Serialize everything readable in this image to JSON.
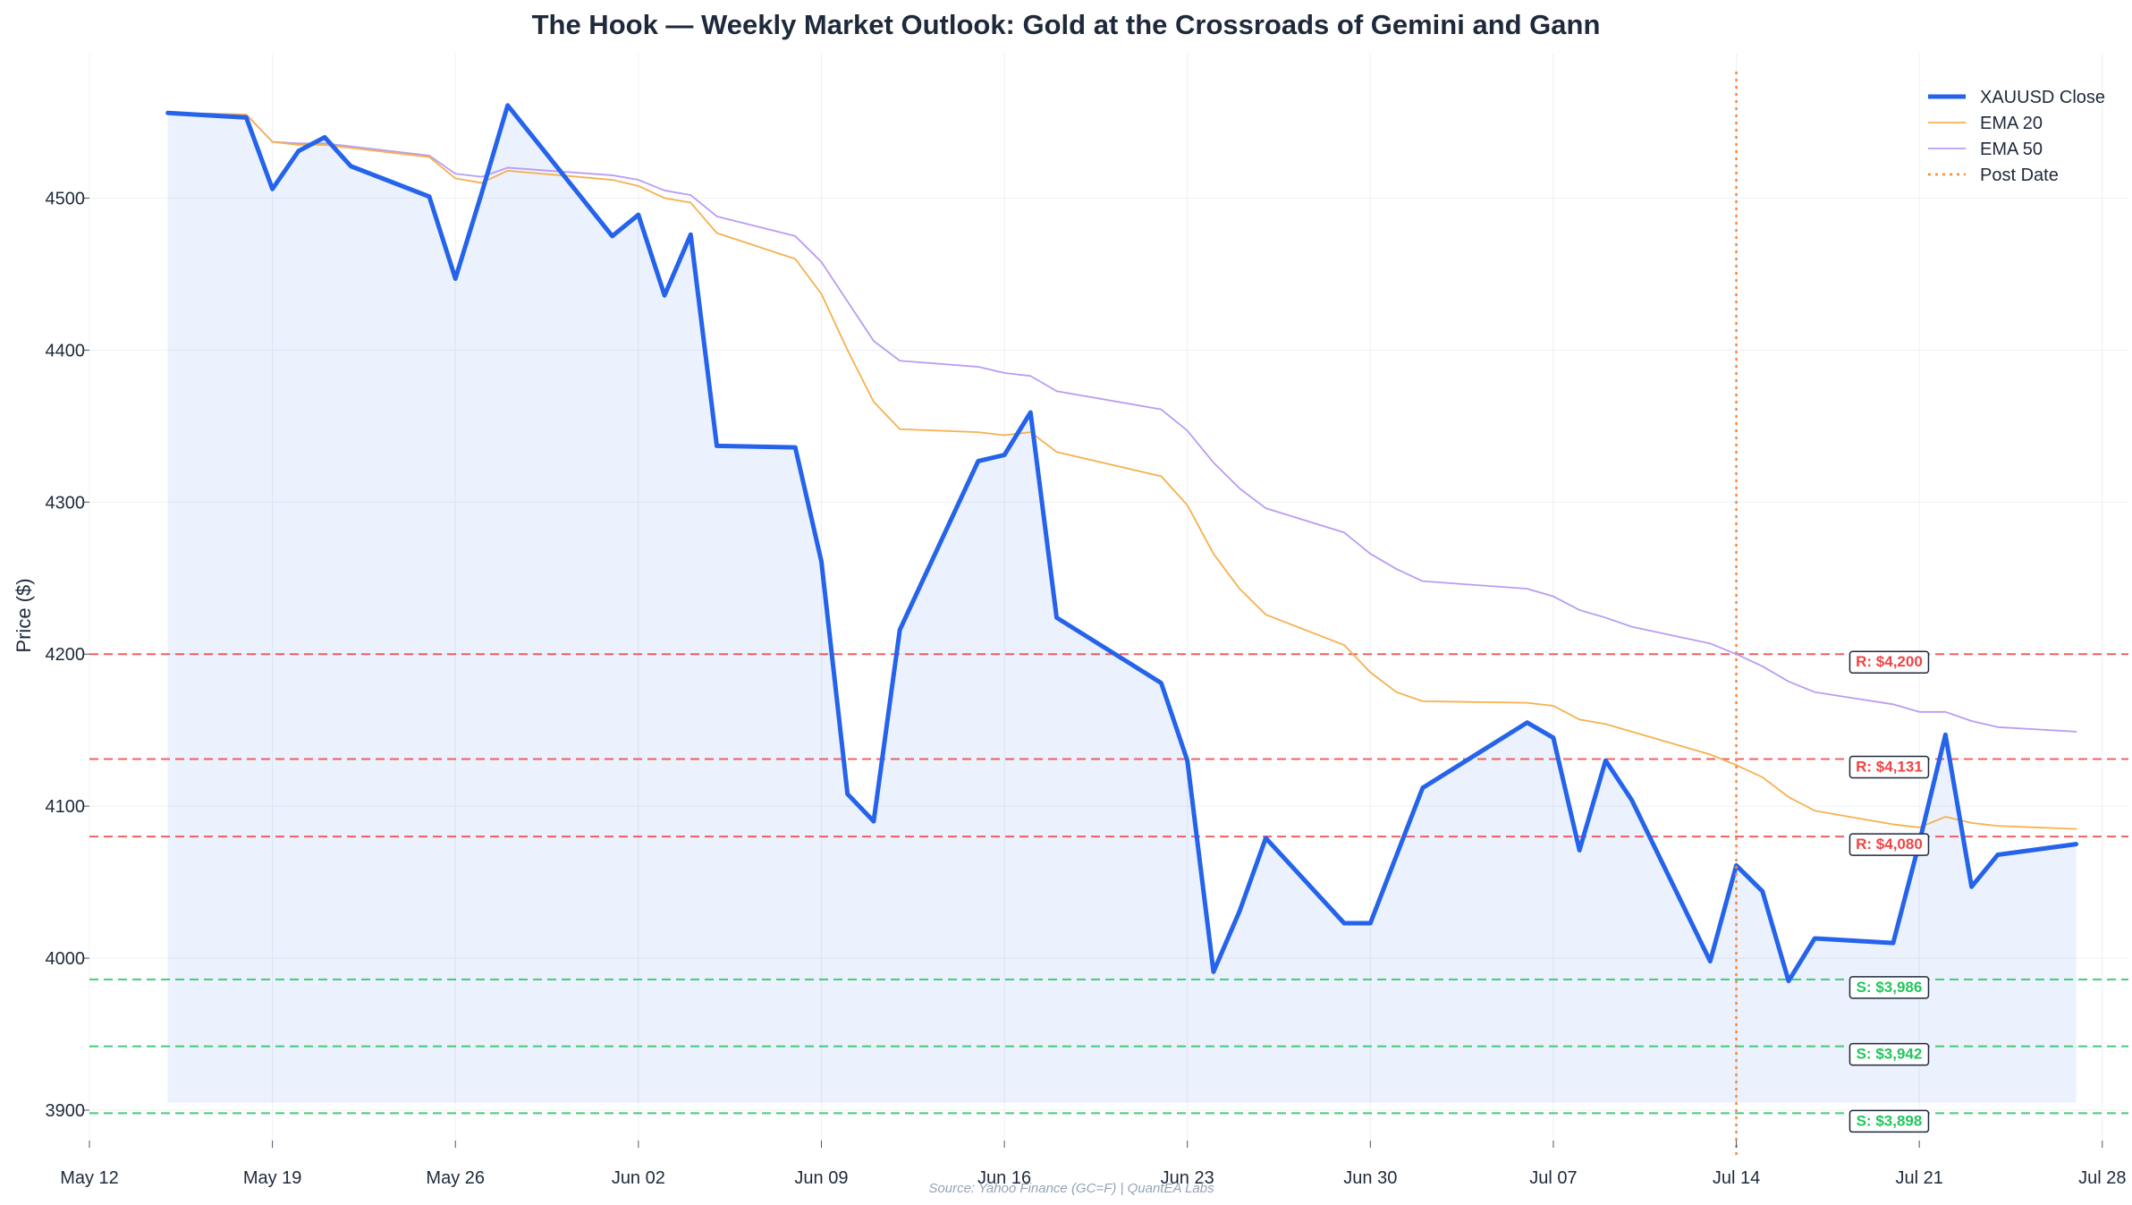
{
  "chart_data": {
    "type": "line",
    "title": "The Hook — Weekly Market Outlook: Gold at the Crossroads of Gemini and Gann",
    "ylabel": "Price ($)",
    "xlabel": "",
    "source": "Source: Yahoo Finance (GC=F) | QuantEA Labs",
    "xlim": [
      "2025-05-12",
      "2025-07-29"
    ],
    "ylim": [
      3880,
      4595
    ],
    "x_ticks": [
      {
        "date": "2025-05-12",
        "label": "May 12"
      },
      {
        "date": "2025-05-19",
        "label": "May 19"
      },
      {
        "date": "2025-05-26",
        "label": "May 26"
      },
      {
        "date": "2025-06-02",
        "label": "Jun 02"
      },
      {
        "date": "2025-06-09",
        "label": "Jun 09"
      },
      {
        "date": "2025-06-16",
        "label": "Jun 16"
      },
      {
        "date": "2025-06-23",
        "label": "Jun 23"
      },
      {
        "date": "2025-06-30",
        "label": "Jun 30"
      },
      {
        "date": "2025-07-07",
        "label": "Jul 07"
      },
      {
        "date": "2025-07-14",
        "label": "Jul 14"
      },
      {
        "date": "2025-07-21",
        "label": "Jul 21"
      },
      {
        "date": "2025-07-28",
        "label": "Jul 28"
      }
    ],
    "y_ticks": [
      3900,
      4000,
      4100,
      4200,
      4300,
      4400,
      4500
    ],
    "grid": true,
    "legend_position": "top-right",
    "series": [
      {
        "name": "XAUUSD Close",
        "color": "#2563eb",
        "style": "solid-thick",
        "fill_to": 3905,
        "points": [
          [
            "2025-05-15",
            4556
          ],
          [
            "2025-05-18",
            4553
          ],
          [
            "2025-05-19",
            4506
          ],
          [
            "2025-05-20",
            4531
          ],
          [
            "2025-05-21",
            4540
          ],
          [
            "2025-05-22",
            4521
          ],
          [
            "2025-05-25",
            4501
          ],
          [
            "2025-05-26",
            4447
          ],
          [
            "2025-05-27",
            4503
          ],
          [
            "2025-05-28",
            4561
          ],
          [
            "2025-06-01",
            4475
          ],
          [
            "2025-06-02",
            4489
          ],
          [
            "2025-06-03",
            4436
          ],
          [
            "2025-06-04",
            4476
          ],
          [
            "2025-06-05",
            4337
          ],
          [
            "2025-06-08",
            4336
          ],
          [
            "2025-06-09",
            4261
          ],
          [
            "2025-06-10",
            4108
          ],
          [
            "2025-06-11",
            4090
          ],
          [
            "2025-06-12",
            4216
          ],
          [
            "2025-06-15",
            4327
          ],
          [
            "2025-06-16",
            4331
          ],
          [
            "2025-06-17",
            4359
          ],
          [
            "2025-06-18",
            4224
          ],
          [
            "2025-06-22",
            4181
          ],
          [
            "2025-06-23",
            4130
          ],
          [
            "2025-06-24",
            3991
          ],
          [
            "2025-06-25",
            4031
          ],
          [
            "2025-06-26",
            4079
          ],
          [
            "2025-06-29",
            4023
          ],
          [
            "2025-06-30",
            4023
          ],
          [
            "2025-07-02",
            4112
          ],
          [
            "2025-07-06",
            4155
          ],
          [
            "2025-07-07",
            4145
          ],
          [
            "2025-07-08",
            4071
          ],
          [
            "2025-07-09",
            4130
          ],
          [
            "2025-07-10",
            4104
          ],
          [
            "2025-07-13",
            3998
          ],
          [
            "2025-07-14",
            4061
          ],
          [
            "2025-07-15",
            4044
          ],
          [
            "2025-07-16",
            3985
          ],
          [
            "2025-07-17",
            4013
          ],
          [
            "2025-07-20",
            4010
          ],
          [
            "2025-07-21",
            4076
          ],
          [
            "2025-07-22",
            4147
          ],
          [
            "2025-07-23",
            4047
          ],
          [
            "2025-07-24",
            4068
          ],
          [
            "2025-07-27",
            4075
          ]
        ]
      },
      {
        "name": "EMA 20",
        "color": "#f6b04e",
        "style": "solid-thin",
        "points": [
          [
            "2025-05-15",
            4556
          ],
          [
            "2025-05-18",
            4555
          ],
          [
            "2025-05-19",
            4537
          ],
          [
            "2025-05-20",
            4535
          ],
          [
            "2025-05-21",
            4535
          ],
          [
            "2025-05-22",
            4533
          ],
          [
            "2025-05-25",
            4527
          ],
          [
            "2025-05-26",
            4513
          ],
          [
            "2025-05-27",
            4510
          ],
          [
            "2025-05-28",
            4518
          ],
          [
            "2025-06-01",
            4512
          ],
          [
            "2025-06-02",
            4508
          ],
          [
            "2025-06-03",
            4500
          ],
          [
            "2025-06-04",
            4497
          ],
          [
            "2025-06-05",
            4477
          ],
          [
            "2025-06-08",
            4460
          ],
          [
            "2025-06-09",
            4437
          ],
          [
            "2025-06-10",
            4400
          ],
          [
            "2025-06-11",
            4366
          ],
          [
            "2025-06-12",
            4348
          ],
          [
            "2025-06-15",
            4346
          ],
          [
            "2025-06-16",
            4344
          ],
          [
            "2025-06-17",
            4346
          ],
          [
            "2025-06-18",
            4333
          ],
          [
            "2025-06-22",
            4317
          ],
          [
            "2025-06-23",
            4298
          ],
          [
            "2025-06-24",
            4266
          ],
          [
            "2025-06-25",
            4243
          ],
          [
            "2025-06-26",
            4226
          ],
          [
            "2025-06-29",
            4206
          ],
          [
            "2025-06-30",
            4188
          ],
          [
            "2025-07-01",
            4175
          ],
          [
            "2025-07-02",
            4169
          ],
          [
            "2025-07-06",
            4168
          ],
          [
            "2025-07-07",
            4166
          ],
          [
            "2025-07-08",
            4157
          ],
          [
            "2025-07-09",
            4154
          ],
          [
            "2025-07-10",
            4149
          ],
          [
            "2025-07-13",
            4134
          ],
          [
            "2025-07-14",
            4127
          ],
          [
            "2025-07-15",
            4119
          ],
          [
            "2025-07-16",
            4106
          ],
          [
            "2025-07-17",
            4097
          ],
          [
            "2025-07-20",
            4088
          ],
          [
            "2025-07-21",
            4086
          ],
          [
            "2025-07-22",
            4093
          ],
          [
            "2025-07-23",
            4089
          ],
          [
            "2025-07-24",
            4087
          ],
          [
            "2025-07-27",
            4085
          ]
        ]
      },
      {
        "name": "EMA 50",
        "color": "#b99cf3",
        "style": "solid-thin",
        "points": [
          [
            "2025-05-15",
            4556
          ],
          [
            "2025-05-18",
            4555
          ],
          [
            "2025-05-19",
            4537
          ],
          [
            "2025-05-20",
            4536
          ],
          [
            "2025-05-21",
            4536
          ],
          [
            "2025-05-22",
            4534
          ],
          [
            "2025-05-25",
            4528
          ],
          [
            "2025-05-26",
            4516
          ],
          [
            "2025-05-27",
            4514
          ],
          [
            "2025-05-28",
            4520
          ],
          [
            "2025-06-01",
            4515
          ],
          [
            "2025-06-02",
            4512
          ],
          [
            "2025-06-03",
            4505
          ],
          [
            "2025-06-04",
            4502
          ],
          [
            "2025-06-05",
            4488
          ],
          [
            "2025-06-08",
            4475
          ],
          [
            "2025-06-09",
            4458
          ],
          [
            "2025-06-10",
            4432
          ],
          [
            "2025-06-11",
            4406
          ],
          [
            "2025-06-12",
            4393
          ],
          [
            "2025-06-15",
            4389
          ],
          [
            "2025-06-16",
            4385
          ],
          [
            "2025-06-17",
            4383
          ],
          [
            "2025-06-18",
            4373
          ],
          [
            "2025-06-22",
            4361
          ],
          [
            "2025-06-23",
            4347
          ],
          [
            "2025-06-24",
            4326
          ],
          [
            "2025-06-25",
            4309
          ],
          [
            "2025-06-26",
            4296
          ],
          [
            "2025-06-29",
            4280
          ],
          [
            "2025-06-30",
            4266
          ],
          [
            "2025-07-01",
            4256
          ],
          [
            "2025-07-02",
            4248
          ],
          [
            "2025-07-06",
            4243
          ],
          [
            "2025-07-07",
            4238
          ],
          [
            "2025-07-08",
            4229
          ],
          [
            "2025-07-09",
            4224
          ],
          [
            "2025-07-10",
            4218
          ],
          [
            "2025-07-13",
            4207
          ],
          [
            "2025-07-14",
            4200
          ],
          [
            "2025-07-15",
            4192
          ],
          [
            "2025-07-16",
            4182
          ],
          [
            "2025-07-17",
            4175
          ],
          [
            "2025-07-20",
            4167
          ],
          [
            "2025-07-21",
            4162
          ],
          [
            "2025-07-22",
            4162
          ],
          [
            "2025-07-23",
            4156
          ],
          [
            "2025-07-24",
            4152
          ],
          [
            "2025-07-27",
            4149
          ]
        ]
      }
    ],
    "vertical_markers": [
      {
        "name": "Post Date",
        "date": "2025-07-14",
        "color": "#f58a3b",
        "style": "dotted"
      }
    ],
    "levels": [
      {
        "type": "resistance",
        "value": 4200,
        "label": "R: $4,200",
        "color": "#ef4444"
      },
      {
        "type": "resistance",
        "value": 4131,
        "label": "R: $4,131",
        "color": "#ef4444"
      },
      {
        "type": "resistance",
        "value": 4080,
        "label": "R: $4,080",
        "color": "#ef4444"
      },
      {
        "type": "support",
        "value": 3986,
        "label": "S: $3,986",
        "color": "#22c55e"
      },
      {
        "type": "support",
        "value": 3942,
        "label": "S: $3,942",
        "color": "#22c55e"
      },
      {
        "type": "support",
        "value": 3898,
        "label": "S: $3,898",
        "color": "#22c55e"
      }
    ],
    "legend": [
      {
        "label": "XAUUSD Close",
        "color": "#2563eb",
        "style": "solid-thick"
      },
      {
        "label": "EMA 20",
        "color": "#f6b04e",
        "style": "solid-thin"
      },
      {
        "label": "EMA 50",
        "color": "#b99cf3",
        "style": "solid-thin"
      },
      {
        "label": "Post Date",
        "color": "#f58a3b",
        "style": "dotted"
      }
    ]
  }
}
